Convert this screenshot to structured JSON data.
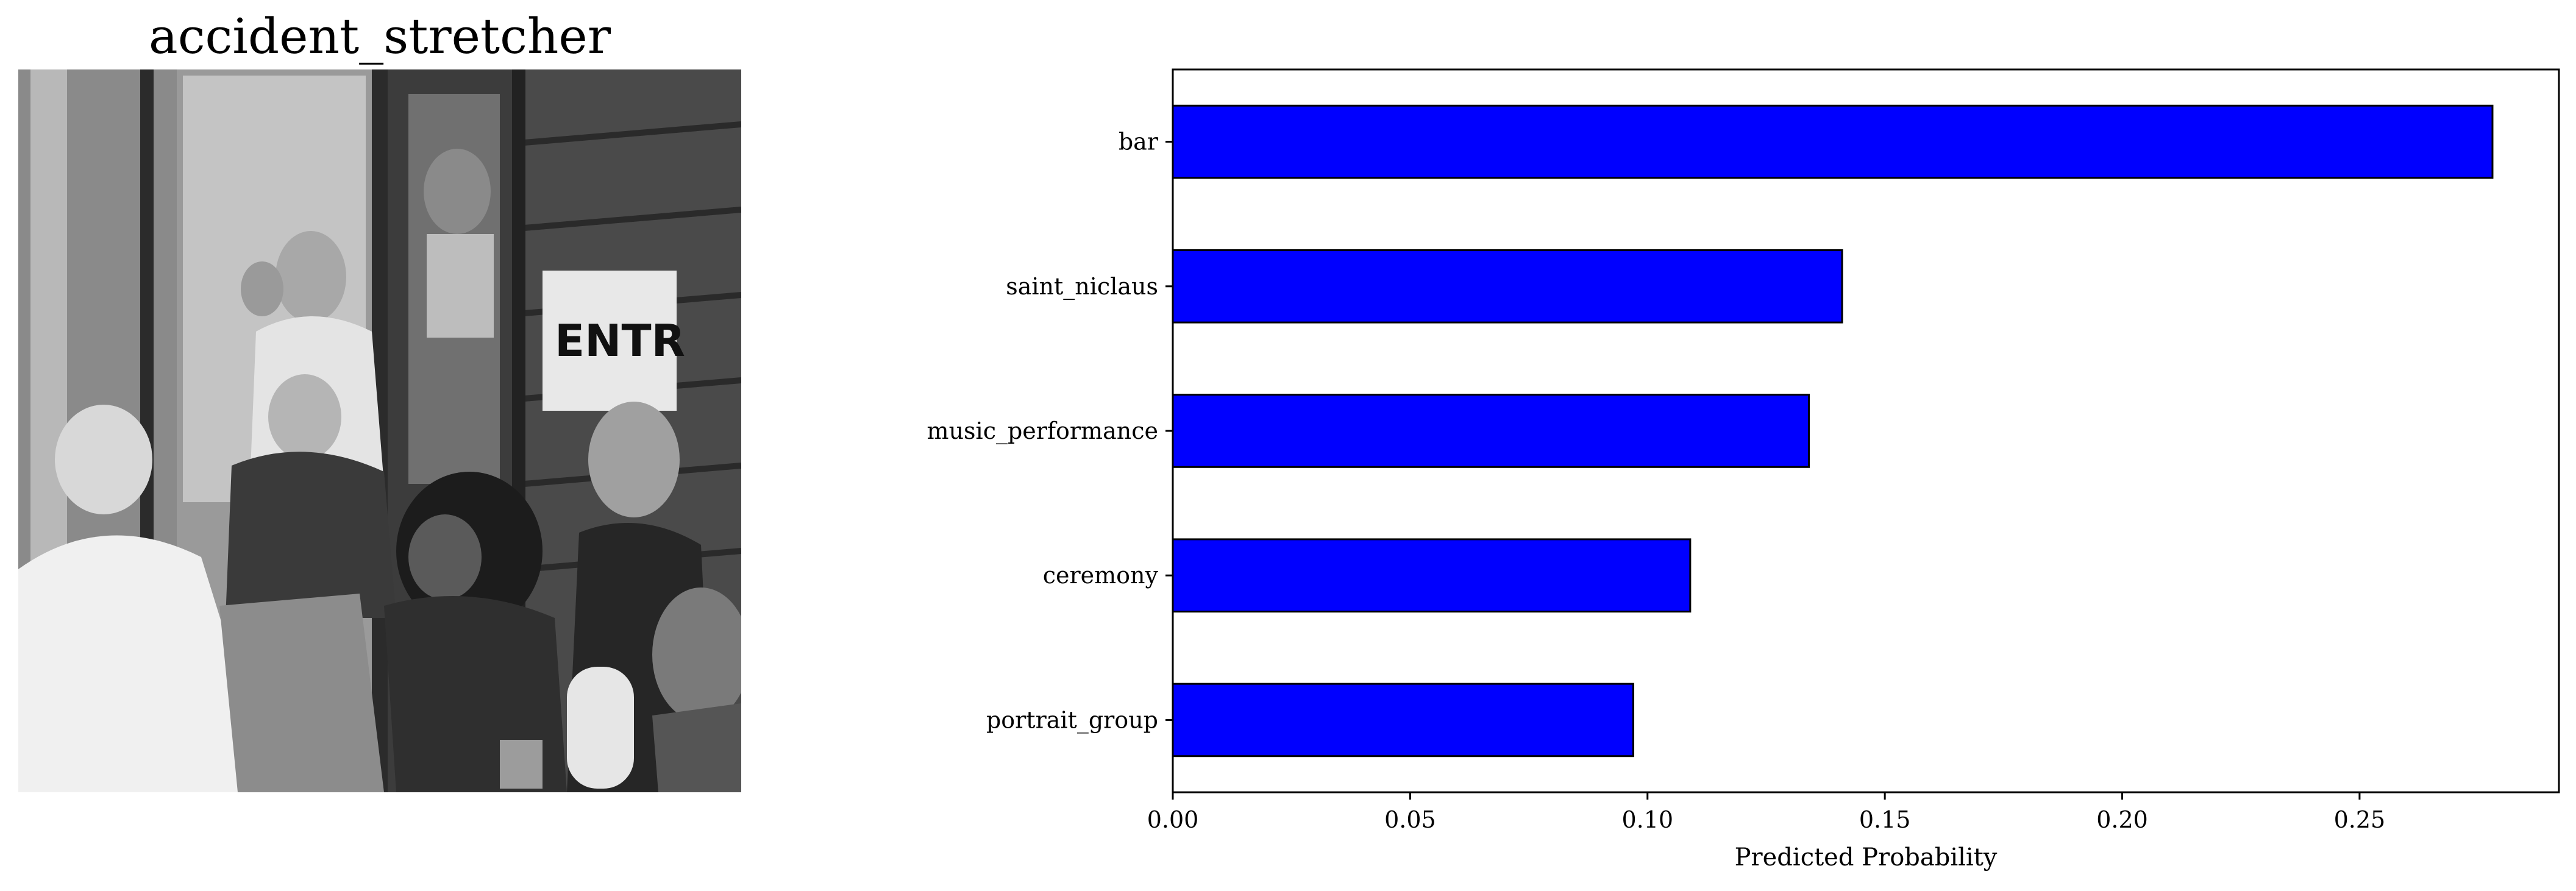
{
  "image_panel": {
    "title": "accident_stretcher",
    "sign_text": "ENTR"
  },
  "chart_data": {
    "type": "bar",
    "orientation": "horizontal",
    "categories": [
      "bar",
      "saint_niclaus",
      "music_performance",
      "ceremony",
      "portrait_group"
    ],
    "values": [
      0.278,
      0.141,
      0.134,
      0.109,
      0.097
    ],
    "bar_color": "#0000ff",
    "edge_color": "#000000",
    "xlabel": "Predicted Probability",
    "ylabel": "",
    "xlim": [
      0.0,
      0.292
    ],
    "xticks": [
      0.0,
      0.05,
      0.1,
      0.15,
      0.2,
      0.25
    ],
    "xtick_labels": [
      "0.00",
      "0.05",
      "0.10",
      "0.15",
      "0.20",
      "0.25"
    ],
    "grid": false
  }
}
